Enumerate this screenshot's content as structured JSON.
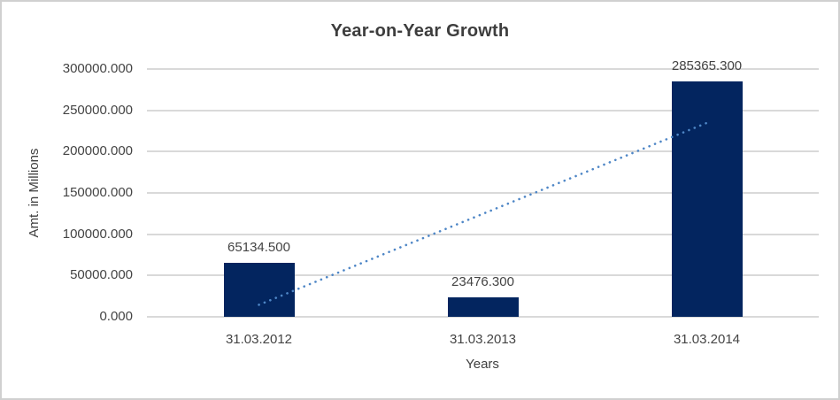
{
  "window": {
    "background_color": "#ffffff",
    "border_color": "#d0d0d0"
  },
  "chart_data": {
    "type": "bar",
    "title": "Year-on-Year Growth",
    "xlabel": "Years",
    "ylabel": "Amt. in Millions",
    "categories": [
      "31.03.2012",
      "31.03.2013",
      "31.03.2014"
    ],
    "values": [
      65134.5,
      23476.3,
      285365.3
    ],
    "value_labels": [
      "65134.500",
      "23476.300",
      "285365.300"
    ],
    "ylim": [
      0,
      300000
    ],
    "y_tick_values": [
      0,
      50000,
      100000,
      150000,
      200000,
      250000,
      300000
    ],
    "y_tick_labels": [
      "0.000",
      "50000.000",
      "100000.000",
      "150000.000",
      "200000.000",
      "250000.000",
      "300000.000"
    ],
    "grid": true,
    "legend": "none",
    "bar_color": "#03255f",
    "gridline_color": "#d9d9d9",
    "text_color": "#444444",
    "trendline": {
      "type": "linear",
      "style": "dotted",
      "color": "#4e86c6",
      "start_category_index": 0,
      "start_value": 14540,
      "end_category_index": 2,
      "end_value": 234780
    }
  }
}
